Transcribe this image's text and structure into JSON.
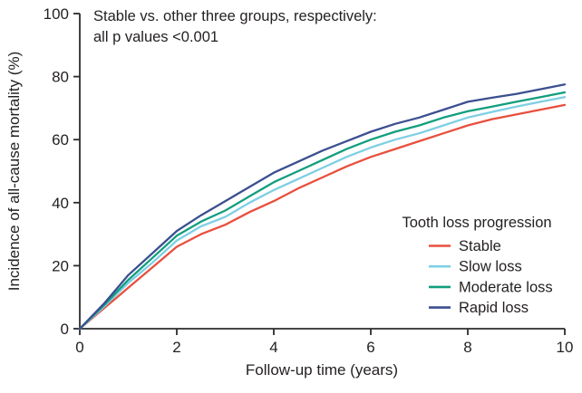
{
  "figure": {
    "annotation": {
      "line1": "Stable vs. other three groups, respectively:",
      "line2": "all p values <0.001"
    }
  },
  "chart_data": {
    "type": "line",
    "title": "",
    "xlabel": "Follow-up time (years)",
    "ylabel": "Incidence of all-cause mortality (%)",
    "xlim": [
      0,
      10
    ],
    "ylim": [
      0,
      100
    ],
    "x_ticks": [
      0,
      2,
      4,
      6,
      8,
      10
    ],
    "y_ticks": [
      0,
      20,
      40,
      60,
      80,
      100
    ],
    "grid": false,
    "legend_title": "Tooth loss progression",
    "legend_position": "inside-right-center",
    "annotation": "Stable vs. other three groups, respectively: all p values <0.001",
    "x": [
      0,
      0.5,
      1,
      1.5,
      2,
      2.5,
      3,
      3.5,
      4,
      4.5,
      5,
      5.5,
      6,
      6.5,
      7,
      7.5,
      8,
      8.5,
      9,
      9.5,
      10
    ],
    "series": [
      {
        "name": "Stable",
        "color": "#e94f3d",
        "values": [
          0,
          6.5,
          13,
          19.5,
          26,
          30,
          33,
          37,
          40.5,
          44.5,
          48,
          51.5,
          54.5,
          57,
          59.5,
          62,
          64.5,
          66.5,
          68,
          69.5,
          71
        ]
      },
      {
        "name": "Slow loss",
        "color": "#7ecfe4",
        "values": [
          0,
          7,
          14.5,
          21,
          28,
          32.5,
          35.5,
          40,
          44,
          47.5,
          51,
          54.5,
          57.5,
          60,
          62,
          64.5,
          67,
          68.8,
          70.5,
          72,
          73.5
        ]
      },
      {
        "name": "Moderate loss",
        "color": "#129e7e",
        "values": [
          0,
          7.5,
          15.5,
          22.5,
          29.5,
          34,
          37.5,
          42,
          46.5,
          50,
          53.5,
          57,
          60,
          62.5,
          64.5,
          67,
          69,
          70.5,
          72,
          73.5,
          75
        ]
      },
      {
        "name": "Rapid loss",
        "color": "#3c4f90",
        "values": [
          0,
          8,
          17,
          24,
          31,
          36,
          40.5,
          45,
          49.5,
          53,
          56.5,
          59.5,
          62.5,
          65,
          67,
          69.5,
          72,
          73.3,
          74.5,
          76,
          77.5
        ]
      }
    ]
  },
  "colors": {
    "axis": "#2b2b2b",
    "text": "#231f20",
    "background": "#ffffff"
  }
}
